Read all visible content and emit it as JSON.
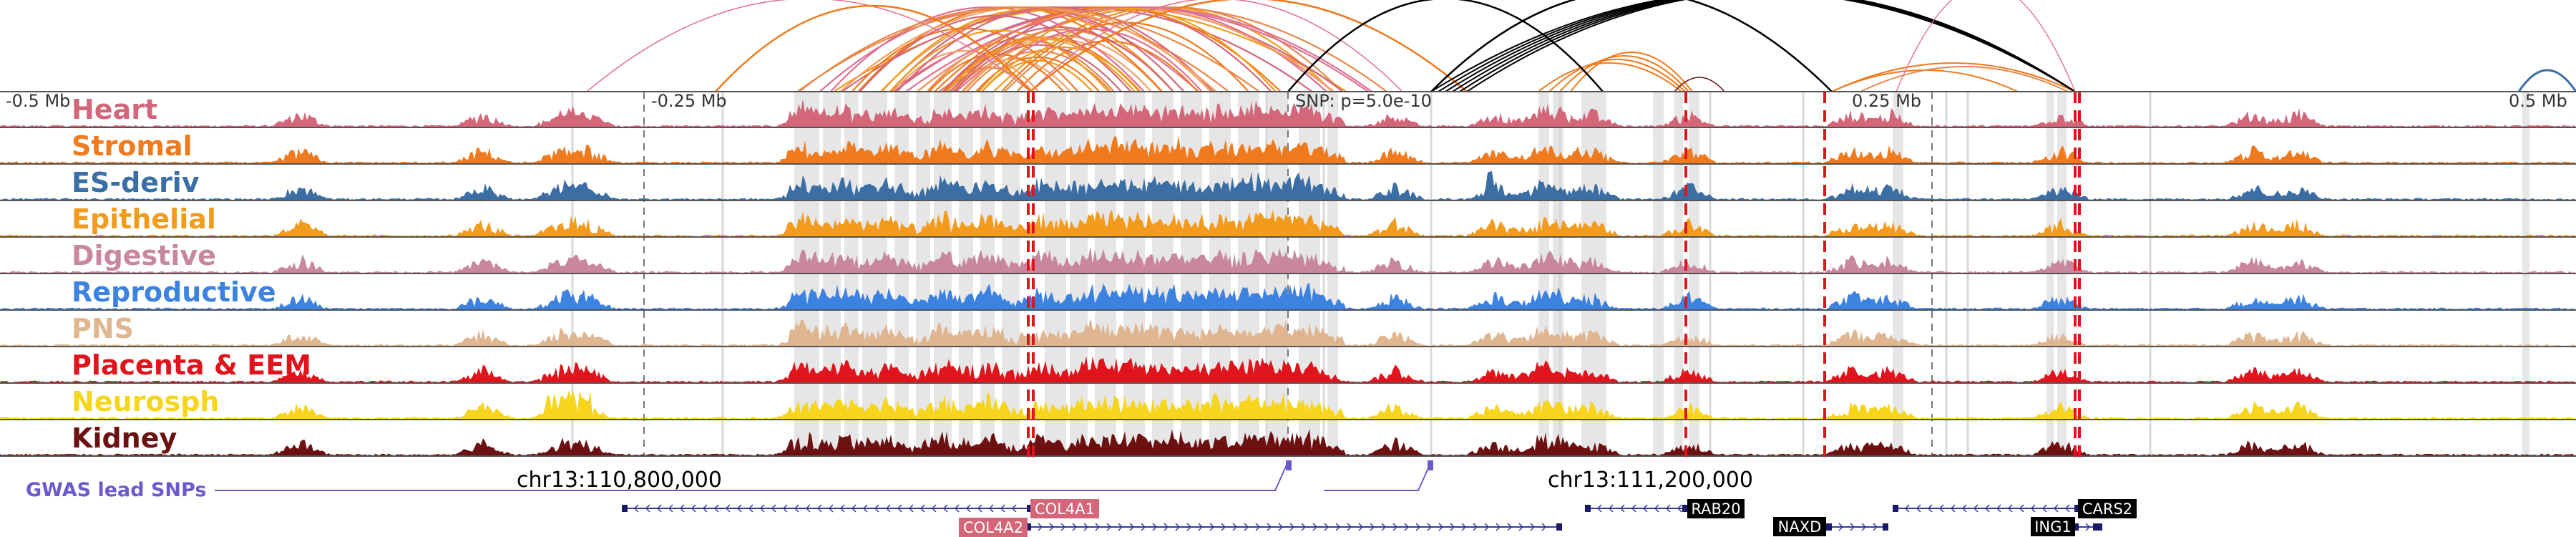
{
  "axis": {
    "ticks": [
      {
        "label": "-0.5 Mb",
        "pos": -0.5
      },
      {
        "label": "-0.25 Mb",
        "pos": -0.25
      },
      {
        "label": "0.25 Mb",
        "pos": 0.25
      },
      {
        "label": "0.5 Mb",
        "pos": 0.5
      }
    ],
    "range_mb": [
      -0.5,
      0.5
    ]
  },
  "snp_label": "SNP: p=5.0e-10",
  "tracks": [
    {
      "name": "Heart",
      "color": "#d4667a"
    },
    {
      "name": "Stromal",
      "color": "#f07a1e"
    },
    {
      "name": "ES-deriv",
      "color": "#3b6ea5"
    },
    {
      "name": "Epithelial",
      "color": "#f29b1c"
    },
    {
      "name": "Digestive",
      "color": "#c9879e"
    },
    {
      "name": "Reproductive",
      "color": "#3c82e0"
    },
    {
      "name": "PNS",
      "color": "#dfb690"
    },
    {
      "name": "Placenta & EEM",
      "color": "#e0141c"
    },
    {
      "name": "Neurosph",
      "color": "#f6d51c"
    },
    {
      "name": "Kidney",
      "color": "#6b1111"
    }
  ],
  "gwas": {
    "label": "GWAS lead SNPs",
    "color": "#6a5acd"
  },
  "coordinates": [
    "chr13:110,800,000",
    "chr13:111,200,000"
  ],
  "genes": [
    {
      "name": "COL4A1",
      "label_bg": "#d4667a",
      "strand": "-"
    },
    {
      "name": "COL4A2",
      "label_bg": "#d4667a",
      "strand": "+"
    },
    {
      "name": "RAB20",
      "label_bg": "#000000",
      "strand": "-"
    },
    {
      "name": "NAXD",
      "label_bg": "#000000",
      "strand": "+"
    },
    {
      "name": "CARS2",
      "label_bg": "#000000",
      "strand": "-"
    },
    {
      "name": "ING1",
      "label_bg": "#000000",
      "strand": "+"
    }
  ]
}
